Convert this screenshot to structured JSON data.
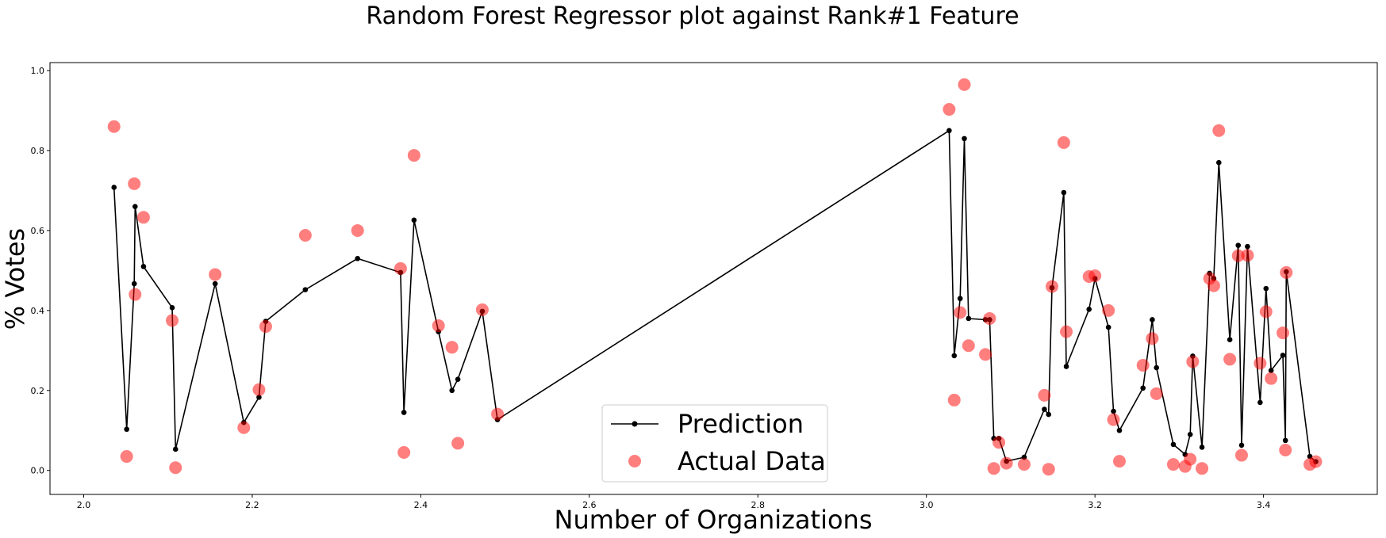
{
  "chart_data": {
    "type": "scatter",
    "title": "Random Forest Regressor plot against Rank#1 Feature",
    "xlabel": "Number of Organizations",
    "ylabel": "% Votes",
    "xlim": [
      1.96,
      3.535
    ],
    "ylim": [
      -0.06,
      1.02
    ],
    "xticks": [
      "2.0",
      "2.2",
      "2.4",
      "2.6",
      "2.8",
      "3.0",
      "3.2",
      "3.4"
    ],
    "yticks": [
      "0.0",
      "0.2",
      "0.4",
      "0.6",
      "0.8",
      "1.0"
    ],
    "grid": false,
    "legend": {
      "placement": "lower-center",
      "entries": [
        "Prediction",
        "Actual Data"
      ]
    },
    "series": [
      {
        "name": "Prediction",
        "style": "line-with-markers",
        "color": "#000000",
        "x": [
          2.036,
          2.051,
          2.06,
          2.061,
          2.071,
          2.105,
          2.109,
          2.156,
          2.19,
          2.208,
          2.216,
          2.263,
          2.325,
          2.376,
          2.38,
          2.392,
          2.421,
          2.437,
          2.444,
          2.473,
          2.491,
          3.027,
          3.033,
          3.04,
          3.045,
          3.05,
          3.07,
          3.075,
          3.08,
          3.086,
          3.095,
          3.116,
          3.14,
          3.145,
          3.149,
          3.163,
          3.166,
          3.193,
          3.2,
          3.216,
          3.222,
          3.229,
          3.257,
          3.268,
          3.273,
          3.293,
          3.307,
          3.313,
          3.316,
          3.327,
          3.336,
          3.341,
          3.347,
          3.36,
          3.37,
          3.374,
          3.381,
          3.396,
          3.403,
          3.409,
          3.423,
          3.426,
          3.427,
          3.455,
          3.462
        ],
        "y": [
          0.708,
          0.103,
          0.467,
          0.66,
          0.51,
          0.407,
          0.053,
          0.467,
          0.12,
          0.183,
          0.373,
          0.452,
          0.53,
          0.495,
          0.145,
          0.626,
          0.347,
          0.2,
          0.228,
          0.398,
          0.127,
          0.85,
          0.287,
          0.43,
          0.83,
          0.38,
          0.377,
          0.377,
          0.08,
          0.08,
          0.023,
          0.033,
          0.153,
          0.14,
          0.457,
          0.695,
          0.26,
          0.403,
          0.48,
          0.358,
          0.148,
          0.1,
          0.206,
          0.377,
          0.257,
          0.065,
          0.04,
          0.09,
          0.286,
          0.058,
          0.493,
          0.48,
          0.77,
          0.327,
          0.563,
          0.063,
          0.56,
          0.17,
          0.455,
          0.25,
          0.288,
          0.075,
          0.497,
          0.035,
          0.022
        ]
      },
      {
        "name": "Actual Data",
        "style": "scatter",
        "color": "#ff0000",
        "alpha": 0.5,
        "x": [
          2.036,
          2.051,
          2.06,
          2.061,
          2.071,
          2.105,
          2.109,
          2.156,
          2.19,
          2.208,
          2.216,
          2.263,
          2.325,
          2.376,
          2.38,
          2.392,
          2.421,
          2.437,
          2.444,
          2.473,
          2.491,
          3.027,
          3.033,
          3.04,
          3.045,
          3.05,
          3.07,
          3.075,
          3.08,
          3.086,
          3.095,
          3.116,
          3.14,
          3.145,
          3.149,
          3.163,
          3.166,
          3.193,
          3.2,
          3.216,
          3.222,
          3.229,
          3.257,
          3.268,
          3.273,
          3.293,
          3.307,
          3.313,
          3.316,
          3.327,
          3.336,
          3.341,
          3.347,
          3.36,
          3.37,
          3.374,
          3.381,
          3.396,
          3.403,
          3.409,
          3.423,
          3.426,
          3.427,
          3.455,
          3.462
        ],
        "y": [
          0.86,
          0.035,
          0.717,
          0.44,
          0.633,
          0.375,
          0.007,
          0.49,
          0.107,
          0.202,
          0.36,
          0.588,
          0.6,
          0.505,
          0.045,
          0.788,
          0.362,
          0.308,
          0.068,
          0.402,
          0.141,
          0.903,
          0.176,
          0.395,
          0.965,
          0.312,
          0.29,
          0.38,
          0.005,
          0.07,
          0.018,
          0.015,
          0.188,
          0.003,
          0.46,
          0.82,
          0.347,
          0.485,
          0.487,
          0.4,
          0.127,
          0.023,
          0.263,
          0.33,
          0.192,
          0.015,
          0.01,
          0.028,
          0.272,
          0.005,
          0.48,
          0.462,
          0.85,
          0.278,
          0.537,
          0.038,
          0.538,
          0.268,
          0.397,
          0.23,
          0.344,
          0.051,
          0.495,
          0.015,
          0.022
        ]
      }
    ]
  }
}
